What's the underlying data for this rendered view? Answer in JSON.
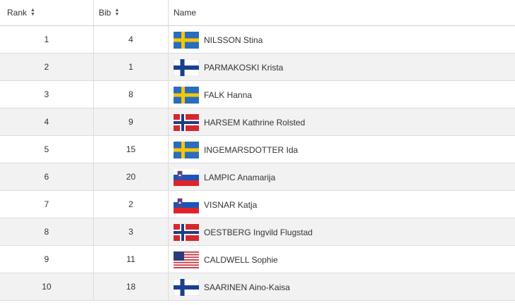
{
  "headers": {
    "rank": "Rank",
    "bib": "Bib",
    "name": "Name"
  },
  "icons": {
    "sort": "sort-icon"
  },
  "rows": [
    {
      "rank": "1",
      "bib": "4",
      "name": "NILSSON Stina",
      "flag": "SWE"
    },
    {
      "rank": "2",
      "bib": "1",
      "name": "PARMAKOSKI Krista",
      "flag": "FIN"
    },
    {
      "rank": "3",
      "bib": "8",
      "name": "FALK Hanna",
      "flag": "SWE"
    },
    {
      "rank": "4",
      "bib": "9",
      "name": "HARSEM Kathrine Rolsted",
      "flag": "NOR"
    },
    {
      "rank": "5",
      "bib": "15",
      "name": "INGEMARSDOTTER Ida",
      "flag": "SWE"
    },
    {
      "rank": "6",
      "bib": "20",
      "name": "LAMPIC Anamarija",
      "flag": "SLO"
    },
    {
      "rank": "7",
      "bib": "2",
      "name": "VISNAR Katja",
      "flag": "SLO"
    },
    {
      "rank": "8",
      "bib": "3",
      "name": "OESTBERG Ingvild Flugstad",
      "flag": "NOR"
    },
    {
      "rank": "9",
      "bib": "11",
      "name": "CALDWELL Sophie",
      "flag": "USA"
    },
    {
      "rank": "10",
      "bib": "18",
      "name": "SAARINEN Aino-Kaisa",
      "flag": "FIN"
    }
  ],
  "colors": {
    "row_alt": "#f2f2f2",
    "border": "#dcdcdc"
  }
}
